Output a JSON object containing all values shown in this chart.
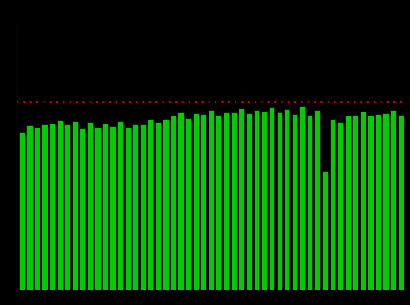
{
  "values": [
    8.6,
    9.0,
    8.85,
    9.05,
    9.1,
    9.25,
    9.05,
    9.2,
    8.8,
    9.15,
    8.9,
    9.1,
    8.95,
    9.2,
    8.85,
    9.05,
    9.05,
    9.3,
    9.15,
    9.35,
    9.5,
    9.7,
    9.4,
    9.65,
    9.6,
    9.8,
    9.55,
    9.7,
    9.7,
    9.9,
    9.65,
    9.8,
    9.75,
    10.0,
    9.7,
    9.85,
    9.6,
    10.05,
    9.55,
    9.8,
    6.5,
    9.35,
    9.15,
    9.5,
    9.55,
    9.75,
    9.5,
    9.6,
    9.65,
    9.8,
    9.55
  ],
  "pre_pandemic_level": 10.25,
  "bar_color": "#00CC00",
  "bar_edge_color": "#000000",
  "dotted_line_color": "#CC0000",
  "background_color": "#000000",
  "axis_color": "#555555",
  "ylim_min": 0,
  "ylim_max": 14.5,
  "bar_width": 0.75,
  "left_spine_color": "#555555"
}
